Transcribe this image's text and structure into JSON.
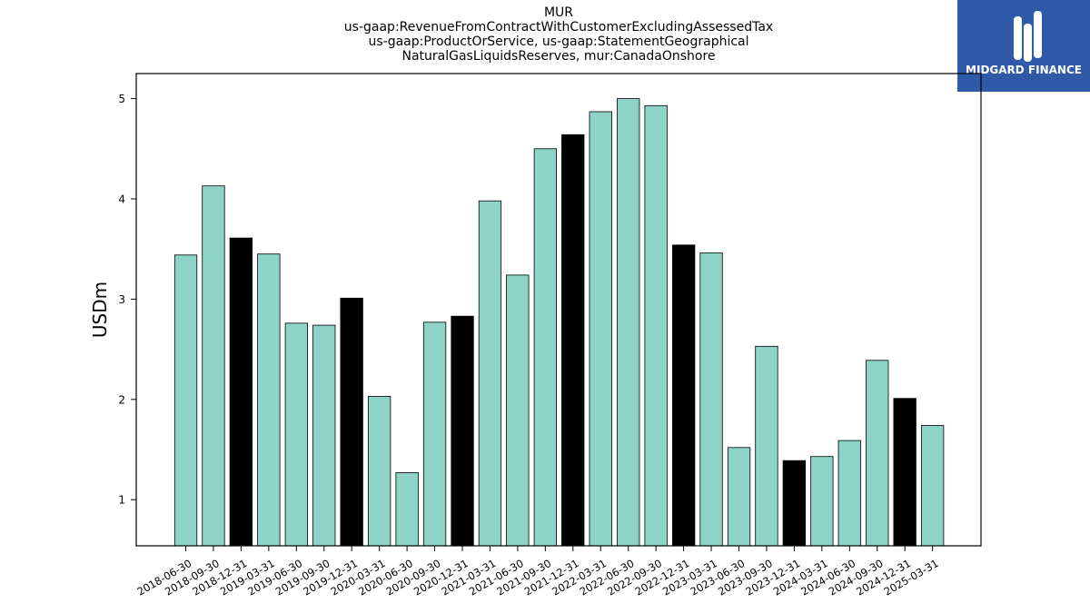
{
  "title_lines": [
    "MUR",
    "us-gaap:RevenueFromContractWithCustomerExcludingAssessedTax",
    "us-gaap:ProductOrService, us-gaap:StatementGeographical",
    "NaturalGasLiquidsReserves, mur:CanadaOnshore"
  ],
  "logo": {
    "text": "MIDGARD FINANCE",
    "bg_color": "#2e5aa8"
  },
  "chart_data": {
    "type": "bar",
    "ylabel": "USDm",
    "xlabel": "",
    "ylim": [
      0.54,
      5.25
    ],
    "yticks": [
      1,
      2,
      3,
      4,
      5
    ],
    "bar_colors": {
      "quarter": "#8dd3c7",
      "year_end": "#000000"
    },
    "categories": [
      "2018-06-30",
      "2018-09-30",
      "2018-12-31",
      "2019-03-31",
      "2019-06-30",
      "2019-09-30",
      "2019-12-31",
      "2020-03-31",
      "2020-06-30",
      "2020-09-30",
      "2020-12-31",
      "2021-03-31",
      "2021-06-30",
      "2021-09-30",
      "2021-12-31",
      "2022-03-31",
      "2022-06-30",
      "2022-09-30",
      "2022-12-31",
      "2023-03-31",
      "2023-06-30",
      "2023-09-30",
      "2023-12-31",
      "2024-03-31",
      "2024-06-30",
      "2024-09-30",
      "2024-12-31",
      "2025-03-31"
    ],
    "values": [
      3.44,
      4.13,
      3.61,
      3.45,
      2.76,
      2.74,
      3.01,
      2.03,
      1.27,
      2.77,
      2.83,
      3.98,
      3.24,
      4.5,
      4.64,
      4.87,
      5.0,
      4.93,
      3.54,
      3.46,
      1.52,
      2.53,
      1.39,
      1.43,
      1.59,
      2.39,
      2.01,
      1.74
    ]
  }
}
